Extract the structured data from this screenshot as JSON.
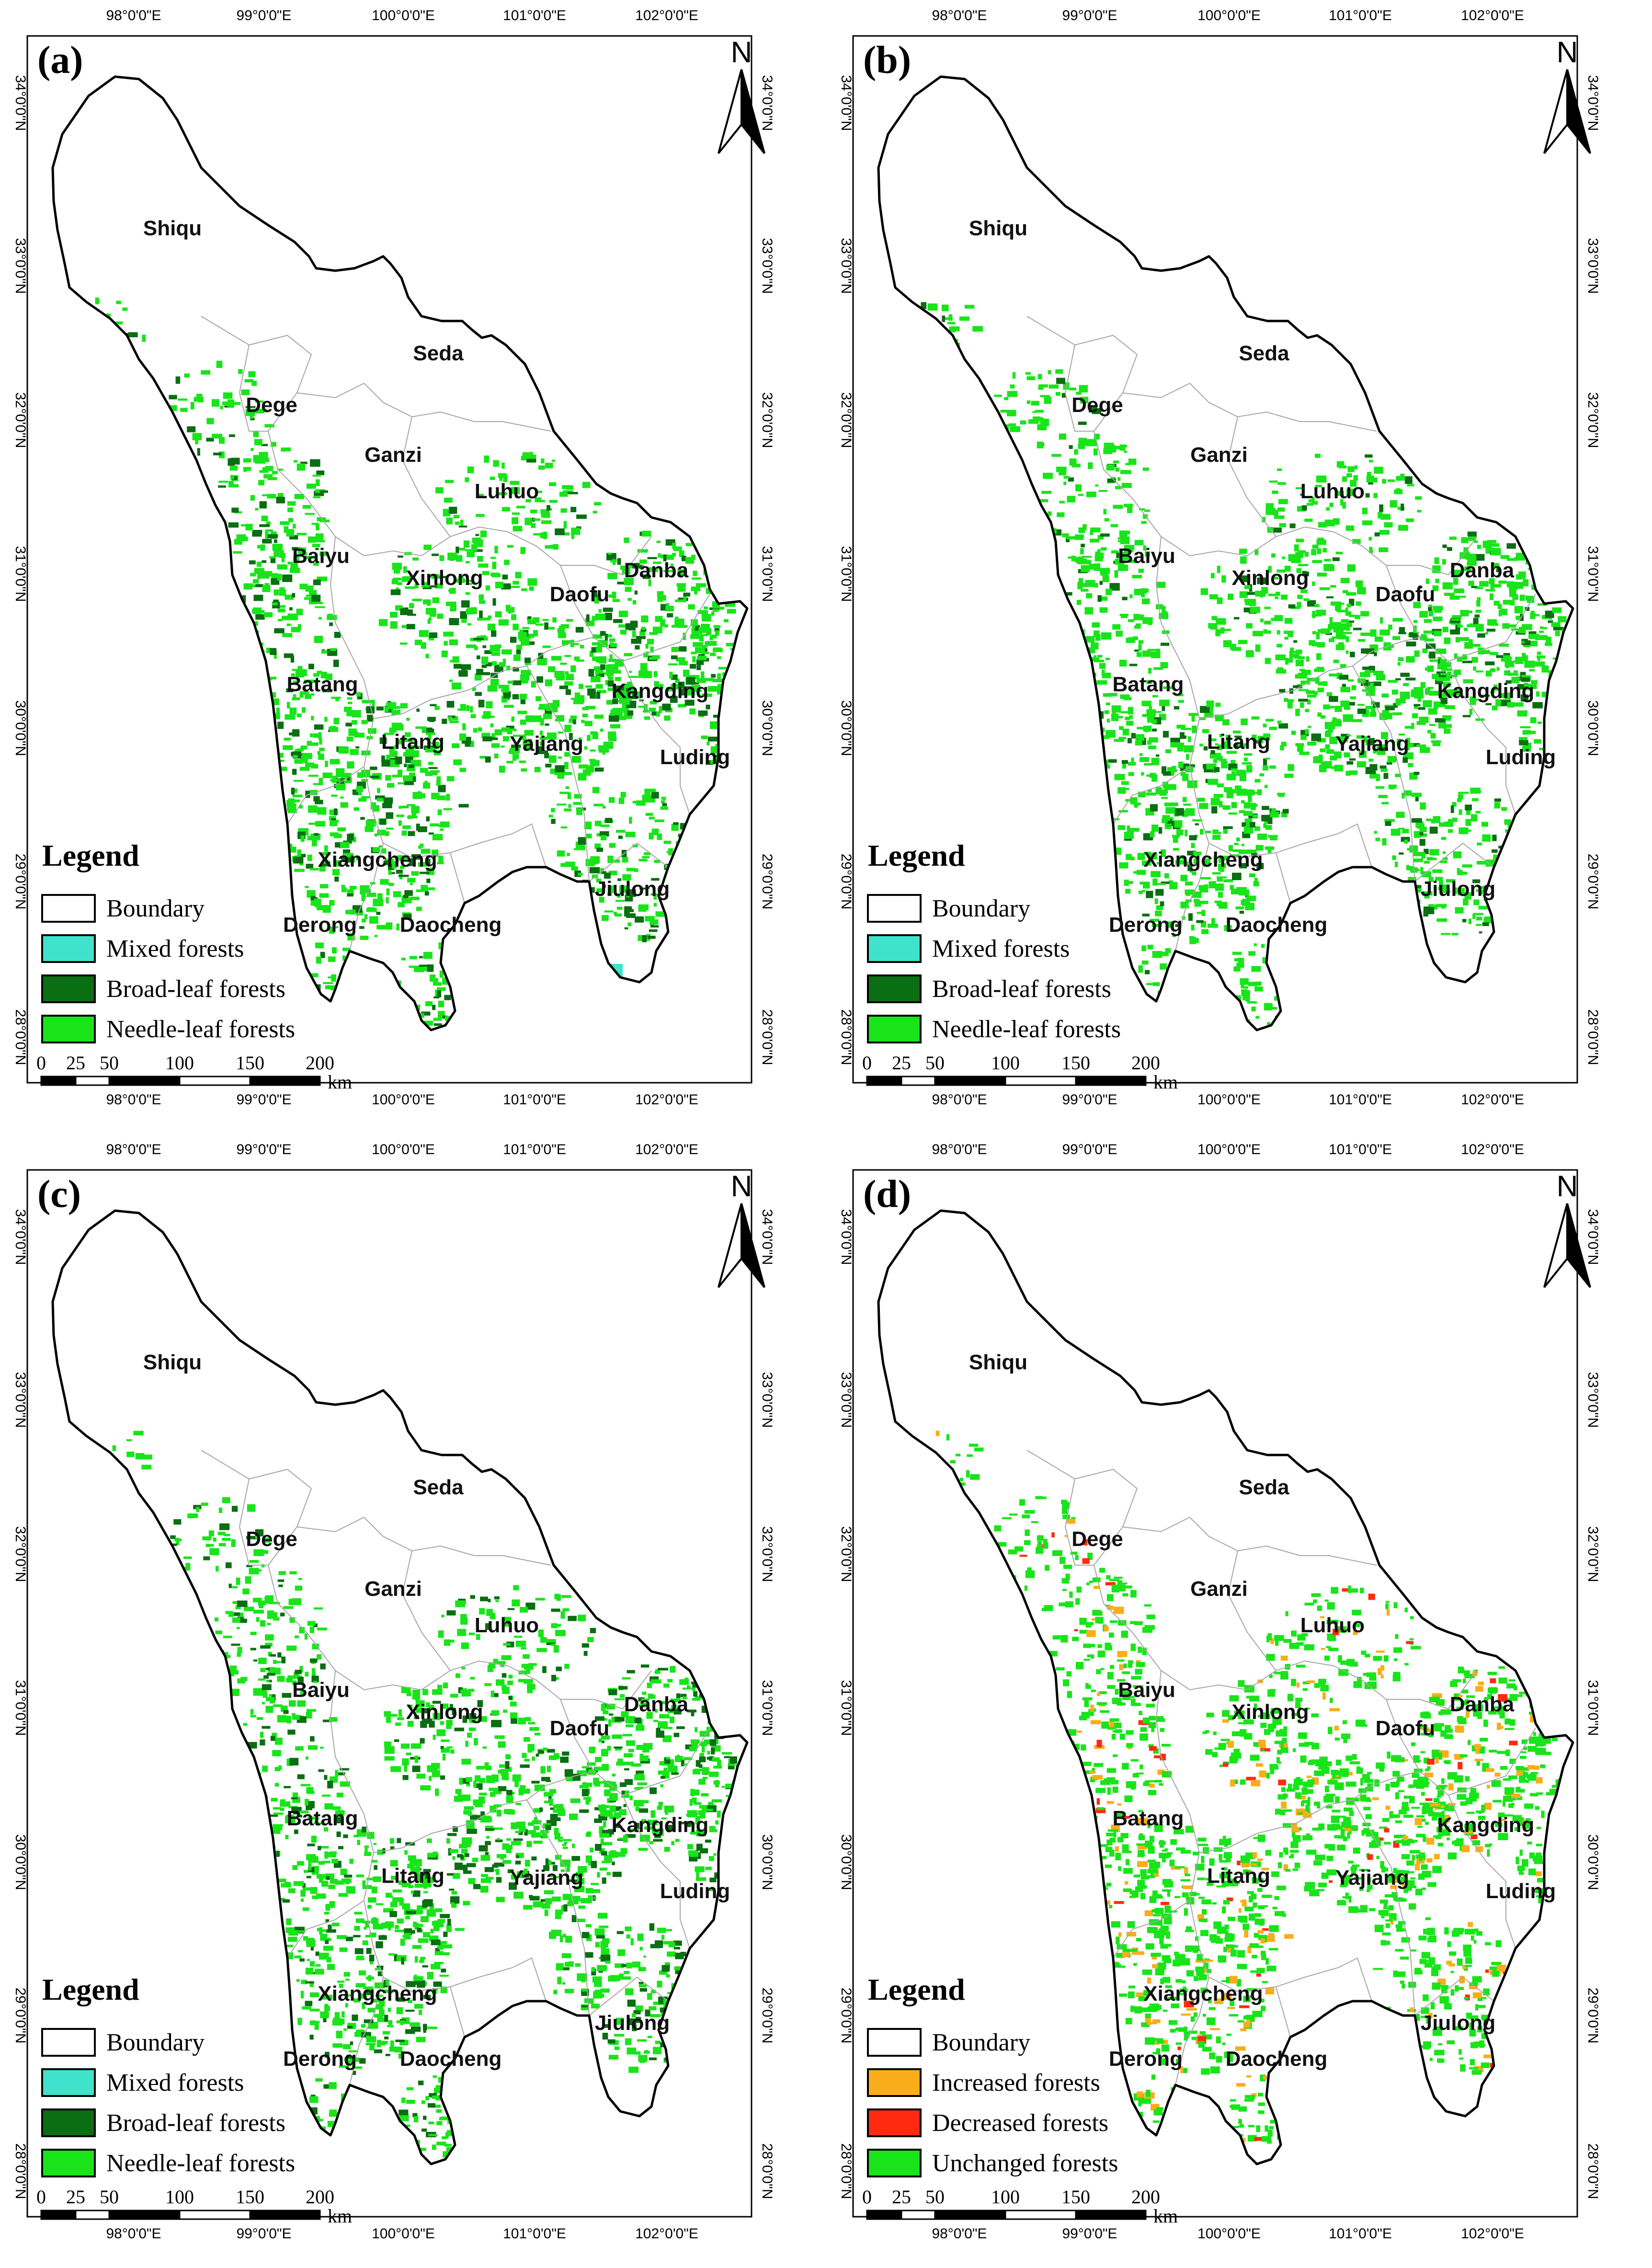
{
  "axes": {
    "lon_labels": [
      "98°0'0\"E",
      "99°0'0\"E",
      "100°0'0\"E",
      "101°0'0\"E",
      "102°0'0\"E"
    ],
    "lat_labels": [
      "34°0'0\"N",
      "33°0'0\"N",
      "32°0'0\"N",
      "31°0'0\"N",
      "30°0'0\"N",
      "29°0'0\"N",
      "28°0'0\"N"
    ]
  },
  "north": "N",
  "scalebar": {
    "ticks": [
      "0",
      "25",
      "50",
      "100",
      "150",
      "200"
    ],
    "unit": "km"
  },
  "counties": [
    {
      "name": "Shiqu"
    },
    {
      "name": "Seda"
    },
    {
      "name": "Dege"
    },
    {
      "name": "Ganzi"
    },
    {
      "name": "Luhuo"
    },
    {
      "name": "Baiyu"
    },
    {
      "name": "Xinlong"
    },
    {
      "name": "Daofu"
    },
    {
      "name": "Danba"
    },
    {
      "name": "Batang"
    },
    {
      "name": "Kangding"
    },
    {
      "name": "Litang"
    },
    {
      "name": "Yajiang"
    },
    {
      "name": "Luding"
    },
    {
      "name": "Xiangcheng"
    },
    {
      "name": "Jiulong"
    },
    {
      "name": "Derong"
    },
    {
      "name": "Daocheng"
    }
  ],
  "colors": {
    "mixed": "#3fe3cc",
    "broadleaf": "#0a6e12",
    "needleleaf": "#19e41a",
    "increased": "#f9ad1a",
    "decreased": "#ff2a10",
    "unchanged": "#19e41a"
  },
  "panels": [
    {
      "label": "(a)",
      "legend_title": "Legend",
      "legend_items": [
        {
          "label": "Boundary",
          "color": "#ffffff"
        },
        {
          "label": "Mixed forests",
          "color": "#3fe3cc"
        },
        {
          "label": "Broad-leaf forests",
          "color": "#0a6e12"
        },
        {
          "label": "Needle-leaf forests",
          "color": "#19e41a"
        }
      ]
    },
    {
      "label": "(b)",
      "legend_title": "Legend",
      "legend_items": [
        {
          "label": "Boundary",
          "color": "#ffffff"
        },
        {
          "label": "Mixed forests",
          "color": "#3fe3cc"
        },
        {
          "label": "Broad-leaf forests",
          "color": "#0a6e12"
        },
        {
          "label": "Needle-leaf forests",
          "color": "#19e41a"
        }
      ]
    },
    {
      "label": "(c)",
      "legend_title": "Legend",
      "legend_items": [
        {
          "label": "Boundary",
          "color": "#ffffff"
        },
        {
          "label": "Mixed forests",
          "color": "#3fe3cc"
        },
        {
          "label": "Broad-leaf forests",
          "color": "#0a6e12"
        },
        {
          "label": "Needle-leaf forests",
          "color": "#19e41a"
        }
      ]
    },
    {
      "label": "(d)",
      "legend_title": "Legend",
      "legend_items": [
        {
          "label": "Boundary",
          "color": "#ffffff"
        },
        {
          "label": "Increased forests",
          "color": "#f9ad1a"
        },
        {
          "label": "Decreased forests",
          "color": "#ff2a10"
        },
        {
          "label": "Unchanged forests",
          "color": "#19e41a"
        }
      ]
    }
  ]
}
